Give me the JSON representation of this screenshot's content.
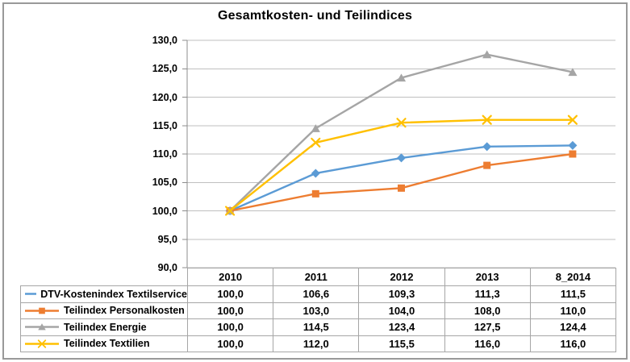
{
  "chart_data": {
    "type": "line",
    "title": "Gesamtkosten- und Teilindices",
    "categories": [
      "2010",
      "2011",
      "2012",
      "2013",
      "8_2014"
    ],
    "series": [
      {
        "name": "DTV-Kostenindex Textilservice",
        "marker": "diamond",
        "color": "#5B9BD5",
        "values": [
          100.0,
          106.6,
          109.3,
          111.3,
          111.5
        ]
      },
      {
        "name": "Teilindex Personalkosten",
        "marker": "square",
        "color": "#ED7D31",
        "values": [
          100.0,
          103.0,
          104.0,
          108.0,
          110.0
        ]
      },
      {
        "name": "Teilindex Energie",
        "marker": "triangle",
        "color": "#A5A5A5",
        "values": [
          100.0,
          114.5,
          123.4,
          127.5,
          124.4
        ]
      },
      {
        "name": "Teilindex Textilien",
        "marker": "x",
        "color": "#FFC000",
        "values": [
          100.0,
          112.0,
          115.5,
          116.0,
          116.0
        ]
      }
    ],
    "ylim": [
      90,
      130
    ],
    "ytick_step": 5,
    "ytick_labels": [
      "130,0",
      "125,0",
      "120,0",
      "115,0",
      "110,0",
      "105,0",
      "100,0",
      "95,0",
      "90,0"
    ],
    "grid": true,
    "legend_position": "table-left-column",
    "value_format": "comma-decimal-1"
  },
  "colors": {
    "background": "#FFFFFF",
    "gridline": "#BFBFBF",
    "axis": "#8C8C8C",
    "table_border": "#A6A6A6",
    "frame_border": "#999999",
    "text": "#000000"
  }
}
